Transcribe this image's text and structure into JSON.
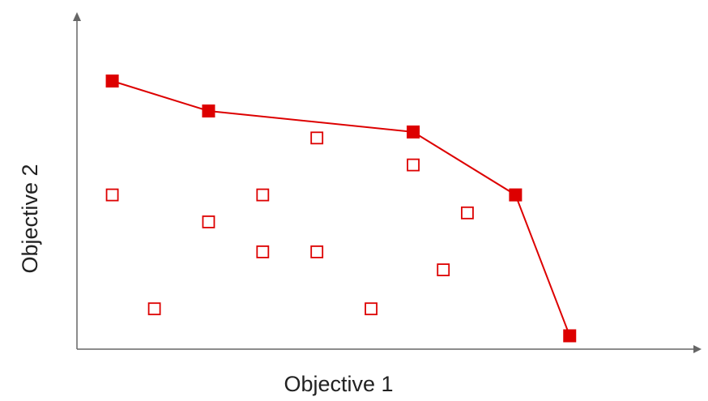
{
  "chart_data": {
    "type": "scatter",
    "xlabel": "Objective 1",
    "ylabel": "Objective 2",
    "xlim": [
      0,
      10
    ],
    "ylim": [
      0,
      10
    ],
    "grid": false,
    "legend": "none",
    "ticks": false,
    "colors": {
      "marker": "#dd0000",
      "axis": "#666666"
    },
    "series": [
      {
        "role": "front",
        "marker": "filled-square",
        "connected": true,
        "points": [
          {
            "x": 0.6,
            "y": 10.0
          },
          {
            "x": 2.2,
            "y": 9.0
          },
          {
            "x": 5.6,
            "y": 8.3
          },
          {
            "x": 7.3,
            "y": 6.2
          },
          {
            "x": 8.2,
            "y": 1.5
          }
        ]
      },
      {
        "role": "dominated",
        "marker": "hollow-square",
        "connected": false,
        "points": [
          {
            "x": 0.6,
            "y": 6.2
          },
          {
            "x": 1.3,
            "y": 2.4
          },
          {
            "x": 2.2,
            "y": 5.3
          },
          {
            "x": 3.1,
            "y": 6.2
          },
          {
            "x": 3.1,
            "y": 4.3
          },
          {
            "x": 4.0,
            "y": 8.1
          },
          {
            "x": 4.0,
            "y": 4.3
          },
          {
            "x": 4.9,
            "y": 2.4
          },
          {
            "x": 5.6,
            "y": 7.2
          },
          {
            "x": 6.1,
            "y": 3.7
          },
          {
            "x": 6.5,
            "y": 5.6
          }
        ]
      }
    ]
  }
}
